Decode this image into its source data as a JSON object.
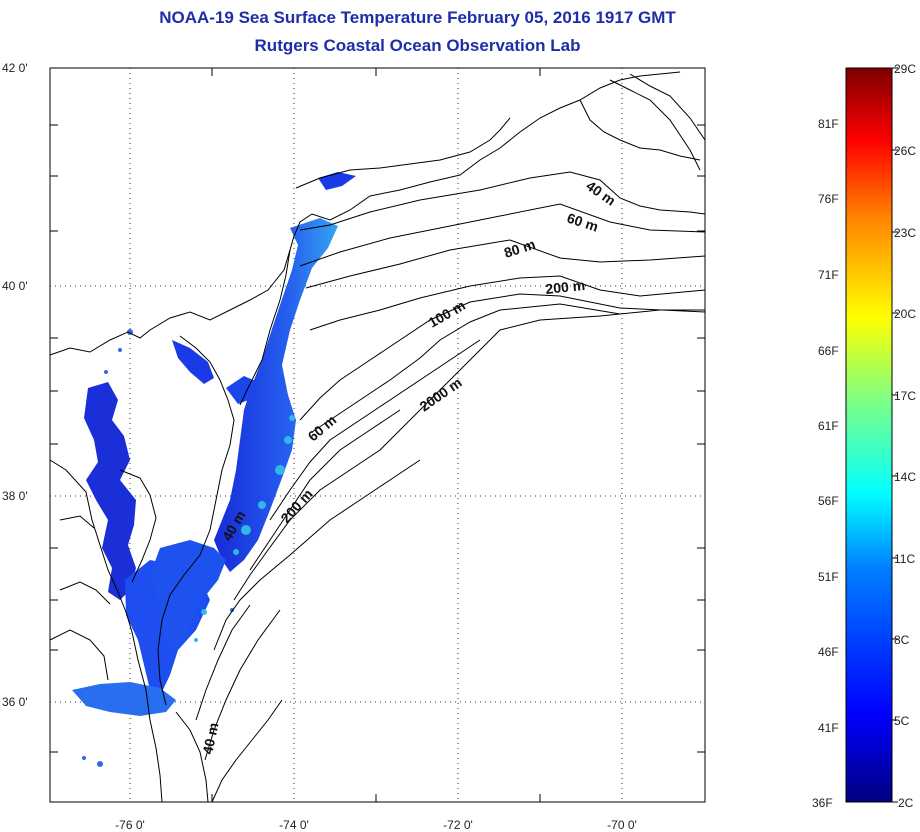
{
  "header": {
    "title": "NOAA-19 Sea Surface Temperature February 05, 2016 1917 GMT",
    "subtitle": "Rutgers Coastal Ocean Observation Lab"
  },
  "axes": {
    "lat_labels": [
      "42 0'",
      "40 0'",
      "38 0'",
      "36 0'"
    ],
    "lon_labels": [
      "-76 0'",
      "-74 0'",
      "-72 0'",
      "-70 0'"
    ]
  },
  "depth_labels": [
    "40 m",
    "60 m",
    "80 m",
    "200 m",
    "100 m",
    "2000 m",
    "60 m",
    "40 m",
    "200 m",
    "40 m"
  ],
  "colorbar": {
    "fahrenheit": [
      "81F",
      "76F",
      "71F",
      "66F",
      "61F",
      "56F",
      "51F",
      "46F",
      "41F",
      "36F"
    ],
    "celsius": [
      "29C",
      "26C",
      "23C",
      "20C",
      "17C",
      "14C",
      "11C",
      "8C",
      "5C",
      "2C"
    ],
    "colors": [
      "#00007f",
      "#0000ff",
      "#0080ff",
      "#00ffff",
      "#80ff80",
      "#ffff00",
      "#ff8000",
      "#ff0000",
      "#800000"
    ]
  }
}
